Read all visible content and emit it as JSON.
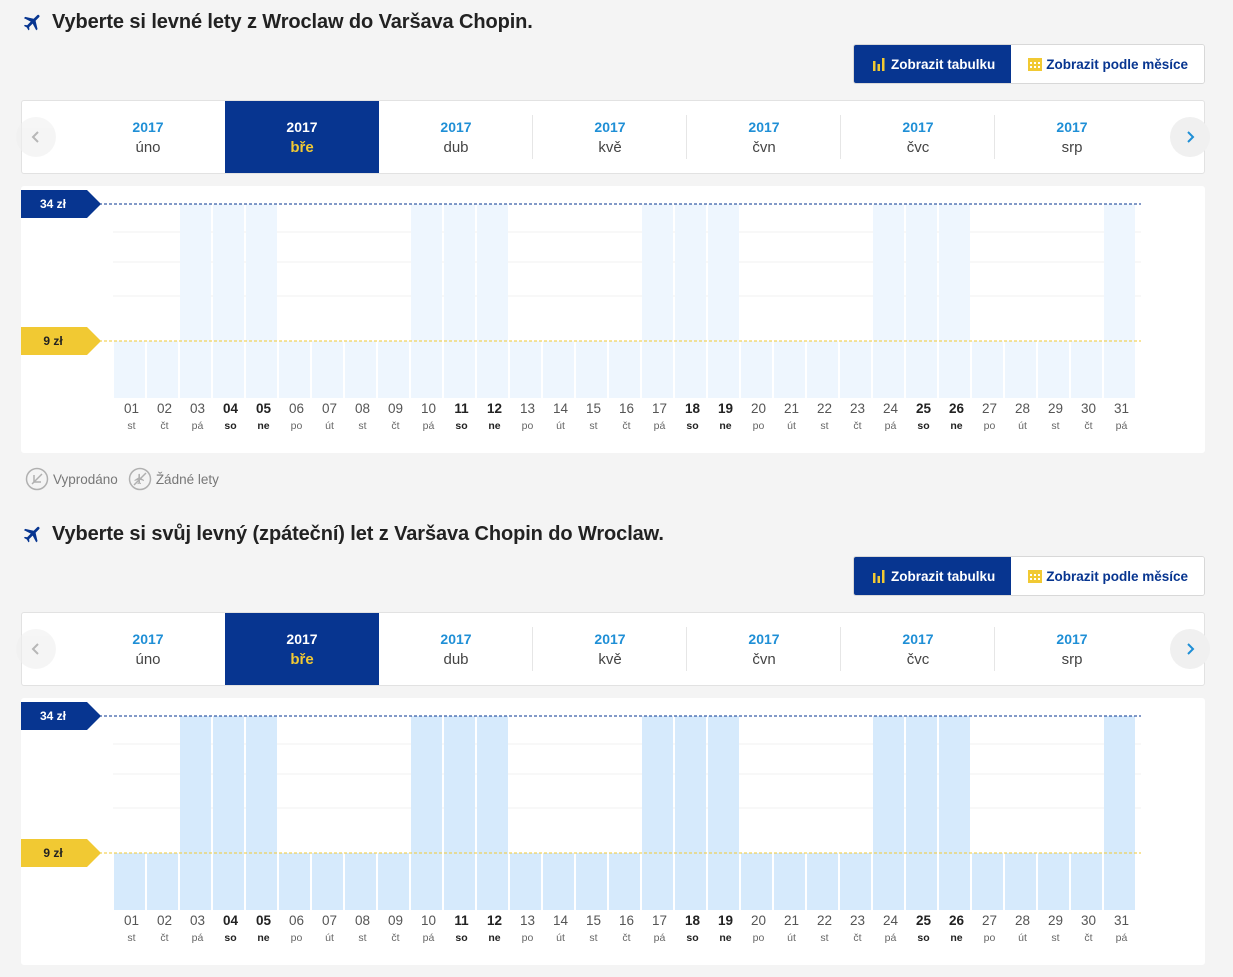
{
  "colors": {
    "brand_blue": "#073590",
    "accent_yellow": "#f1c933",
    "bar_light": "#eef6fe",
    "bar_strong": "#d6eafc",
    "link_blue": "#1f8fd6"
  },
  "outbound": {
    "title": "Vyberte si levné lety z Wroclaw do Varšava Chopin.",
    "view_table_label": "Zobrazit tabulku",
    "view_month_label": "Zobrazit podle měsíce",
    "months": [
      {
        "year": "2017",
        "month": "úno"
      },
      {
        "year": "2017",
        "month": "bře",
        "active": true
      },
      {
        "year": "2017",
        "month": "dub"
      },
      {
        "year": "2017",
        "month": "kvě"
      },
      {
        "year": "2017",
        "month": "čvn"
      },
      {
        "year": "2017",
        "month": "čvc"
      },
      {
        "year": "2017",
        "month": "srp"
      }
    ],
    "chart_data": {
      "type": "bar",
      "max_label": "34 zł",
      "min_label": "9 zł",
      "unit": "zł",
      "ylim": [
        0,
        34
      ],
      "categories": [
        "01",
        "02",
        "03",
        "04",
        "05",
        "06",
        "07",
        "08",
        "09",
        "10",
        "11",
        "12",
        "13",
        "14",
        "15",
        "16",
        "17",
        "18",
        "19",
        "20",
        "21",
        "22",
        "23",
        "24",
        "25",
        "26",
        "27",
        "28",
        "29",
        "30",
        "31"
      ],
      "weekdays": [
        "st",
        "čt",
        "pá",
        "so",
        "ne",
        "po",
        "út",
        "st",
        "čt",
        "pá",
        "so",
        "ne",
        "po",
        "út",
        "st",
        "čt",
        "pá",
        "so",
        "ne",
        "po",
        "út",
        "st",
        "čt",
        "pá",
        "so",
        "ne",
        "po",
        "út",
        "st",
        "čt",
        "pá"
      ],
      "values": [
        9,
        9,
        34,
        34,
        34,
        9,
        9,
        9,
        9,
        34,
        34,
        34,
        9,
        9,
        9,
        9,
        34,
        34,
        34,
        9,
        9,
        9,
        9,
        34,
        34,
        34,
        9,
        9,
        9,
        9,
        34
      ]
    }
  },
  "legend": {
    "sold_out": "Vyprodáno",
    "no_flights": "Žádné lety"
  },
  "inbound": {
    "title": "Vyberte si svůj levný (zpáteční) let z Varšava Chopin do Wroclaw.",
    "view_table_label": "Zobrazit tabulku",
    "view_month_label": "Zobrazit podle měsíce",
    "months": [
      {
        "year": "2017",
        "month": "úno"
      },
      {
        "year": "2017",
        "month": "bře",
        "active": true
      },
      {
        "year": "2017",
        "month": "dub"
      },
      {
        "year": "2017",
        "month": "kvě"
      },
      {
        "year": "2017",
        "month": "čvn"
      },
      {
        "year": "2017",
        "month": "čvc"
      },
      {
        "year": "2017",
        "month": "srp"
      }
    ],
    "chart_data": {
      "type": "bar",
      "max_label": "34 zł",
      "min_label": "9 zł",
      "unit": "zł",
      "ylim": [
        0,
        34
      ],
      "categories": [
        "01",
        "02",
        "03",
        "04",
        "05",
        "06",
        "07",
        "08",
        "09",
        "10",
        "11",
        "12",
        "13",
        "14",
        "15",
        "16",
        "17",
        "18",
        "19",
        "20",
        "21",
        "22",
        "23",
        "24",
        "25",
        "26",
        "27",
        "28",
        "29",
        "30",
        "31"
      ],
      "weekdays": [
        "st",
        "čt",
        "pá",
        "so",
        "ne",
        "po",
        "út",
        "st",
        "čt",
        "pá",
        "so",
        "ne",
        "po",
        "út",
        "st",
        "čt",
        "pá",
        "so",
        "ne",
        "po",
        "út",
        "st",
        "čt",
        "pá",
        "so",
        "ne",
        "po",
        "út",
        "st",
        "čt",
        "pá"
      ],
      "values": [
        9,
        9,
        34,
        34,
        34,
        9,
        9,
        9,
        9,
        34,
        34,
        34,
        9,
        9,
        9,
        9,
        34,
        34,
        34,
        9,
        9,
        9,
        9,
        34,
        34,
        34,
        9,
        9,
        9,
        9,
        34
      ]
    }
  }
}
